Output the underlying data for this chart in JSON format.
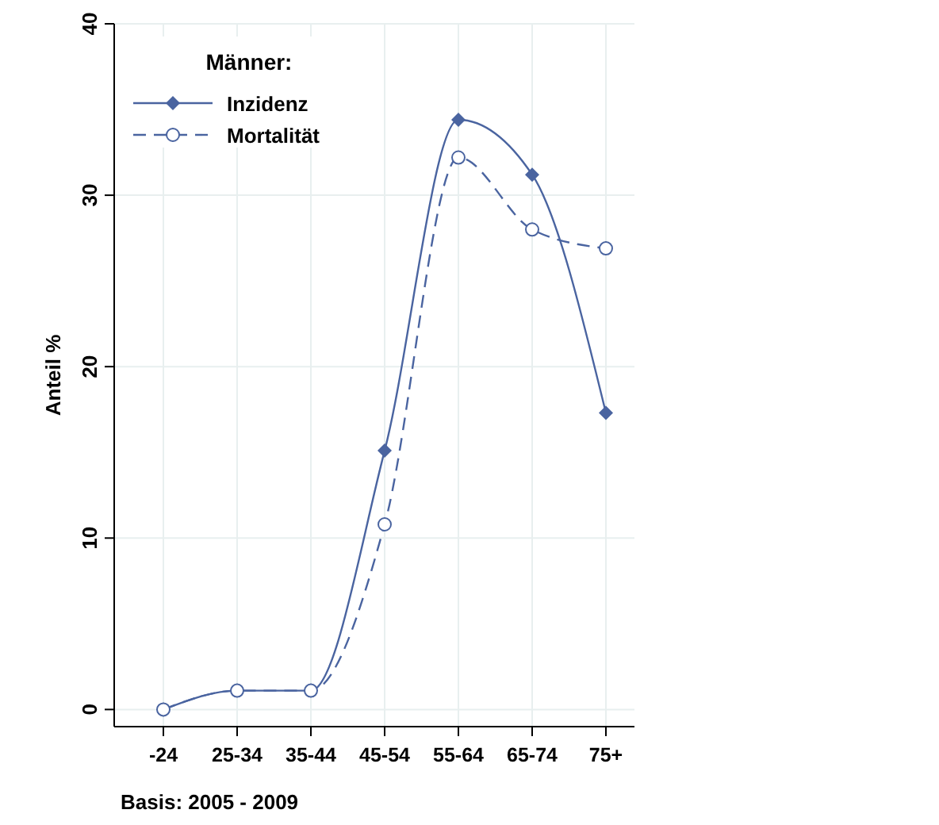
{
  "chart_data": {
    "type": "line",
    "ylabel": "Anteil %",
    "legend_title": "Männer:",
    "categories": [
      "-24",
      "25-34",
      "35-44",
      "45-54",
      "55-64",
      "65-74",
      "75+"
    ],
    "series": [
      {
        "name": "Inzidenz",
        "color": "#4a64a0",
        "marker": "diamond",
        "line_style": "solid",
        "values": [
          0,
          1.1,
          1.1,
          15.1,
          34.4,
          31.2,
          17.3
        ]
      },
      {
        "name": "Mortalität",
        "color": "#4a64a0",
        "marker": "circle",
        "line_style": "dashed",
        "values": [
          0,
          1.1,
          1.1,
          10.8,
          32.2,
          28.0,
          26.9
        ]
      }
    ],
    "ylim": [
      -1,
      40
    ],
    "yticks": [
      0,
      10,
      20,
      30,
      40
    ],
    "grid": true,
    "legend": "top left",
    "annotations": [
      "Basis: 2005 - 2009"
    ]
  }
}
